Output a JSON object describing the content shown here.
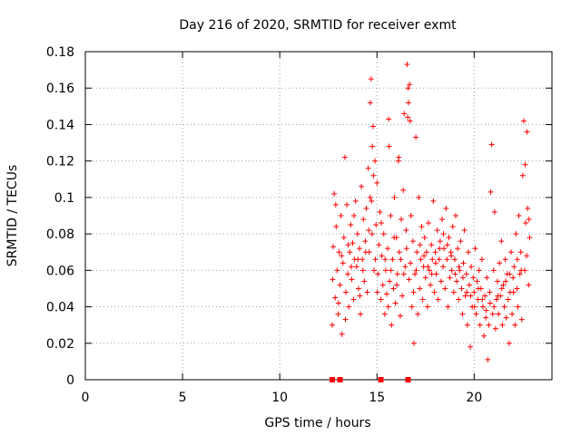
{
  "chart_data": {
    "type": "scatter",
    "title": "Day 216 of 2020, SRMTID for receiver exmt",
    "xlabel": "GPS time / hours",
    "ylabel": "SRMTID / TECUs",
    "xlim": [
      0,
      24
    ],
    "ylim": [
      0,
      0.18
    ],
    "x_ticks": [
      0,
      5,
      10,
      15,
      20
    ],
    "y_ticks": [
      0,
      0.02,
      0.04,
      0.06,
      0.08,
      0.1,
      0.12,
      0.14,
      0.16,
      0.18
    ],
    "x_tick_labels": [
      "0",
      "5",
      "10",
      "15",
      "20"
    ],
    "y_tick_labels": [
      "0",
      "0.02",
      "0.04",
      "0.06",
      "0.08",
      "0.1",
      "0.12",
      "0.14",
      "0.16",
      "0.18"
    ],
    "grid": true,
    "marker": "+",
    "color": "#ff0000",
    "zero_points_x": [
      12.7,
      13.1,
      15.2,
      16.6
    ],
    "series": [
      {
        "name": "SRMTID",
        "points": [
          [
            12.7,
            0.03
          ],
          [
            12.75,
            0.073
          ],
          [
            12.8,
            0.102
          ],
          [
            12.85,
            0.045
          ],
          [
            12.9,
            0.084
          ],
          [
            12.95,
            0.06
          ],
          [
            13.0,
            0.036
          ],
          [
            13.05,
            0.07
          ],
          [
            13.1,
            0.052
          ],
          [
            13.15,
            0.09
          ],
          [
            13.2,
            0.025
          ],
          [
            13.25,
            0.064
          ],
          [
            13.3,
            0.078
          ],
          [
            13.35,
            0.122
          ],
          [
            13.4,
            0.048
          ],
          [
            13.45,
            0.096
          ],
          [
            13.5,
            0.058
          ],
          [
            13.55,
            0.04
          ],
          [
            13.6,
            0.07
          ],
          [
            13.65,
            0.085
          ],
          [
            13.7,
            0.055
          ],
          [
            13.75,
            0.075
          ],
          [
            13.8,
            0.044
          ],
          [
            13.85,
            0.066
          ],
          [
            13.9,
            0.098
          ],
          [
            13.95,
            0.062
          ],
          [
            14.0,
            0.08
          ],
          [
            14.05,
            0.05
          ],
          [
            14.1,
            0.072
          ],
          [
            14.15,
            0.036
          ],
          [
            14.2,
            0.106
          ],
          [
            14.25,
            0.066
          ],
          [
            14.3,
            0.088
          ],
          [
            14.35,
            0.054
          ],
          [
            14.4,
            0.076
          ],
          [
            14.45,
            0.094
          ],
          [
            14.5,
            0.048
          ],
          [
            14.55,
            0.116
          ],
          [
            14.6,
            0.07
          ],
          [
            14.65,
            0.1
          ],
          [
            14.7,
            0.165
          ],
          [
            14.75,
            0.08
          ],
          [
            14.8,
            0.139
          ],
          [
            14.85,
            0.06
          ],
          [
            14.9,
            0.12
          ],
          [
            14.95,
            0.085
          ],
          [
            15.0,
            0.108
          ],
          [
            15.05,
            0.058
          ],
          [
            15.1,
            0.074
          ],
          [
            15.15,
            0.092
          ],
          [
            15.2,
            0.044
          ],
          [
            15.25,
            0.068
          ],
          [
            15.3,
            0.052
          ],
          [
            15.35,
            0.08
          ],
          [
            15.4,
            0.036
          ],
          [
            15.45,
            0.06
          ],
          [
            15.5,
            0.047
          ],
          [
            15.55,
            0.072
          ],
          [
            15.6,
            0.143
          ],
          [
            15.65,
            0.054
          ],
          [
            15.7,
            0.09
          ],
          [
            15.75,
            0.03
          ],
          [
            15.8,
            0.066
          ],
          [
            15.85,
            0.05
          ],
          [
            15.9,
            0.1
          ],
          [
            15.95,
            0.042
          ],
          [
            16.0,
            0.078
          ],
          [
            16.05,
            0.058
          ],
          [
            16.1,
            0.12
          ],
          [
            16.15,
            0.07
          ],
          [
            16.2,
            0.035
          ],
          [
            16.25,
            0.088
          ],
          [
            16.3,
            0.046
          ],
          [
            16.35,
            0.104
          ],
          [
            16.4,
            0.146
          ],
          [
            16.45,
            0.062
          ],
          [
            16.5,
            0.082
          ],
          [
            16.55,
            0.173
          ],
          [
            16.6,
            0.16
          ],
          [
            16.65,
            0.055
          ],
          [
            16.7,
            0.142
          ],
          [
            16.75,
            0.09
          ],
          [
            16.8,
            0.04
          ],
          [
            16.85,
            0.076
          ],
          [
            16.9,
            0.02
          ],
          [
            16.95,
            0.058
          ],
          [
            17.0,
            0.133
          ],
          [
            17.05,
            0.07
          ],
          [
            17.1,
            0.036
          ],
          [
            17.15,
            0.1
          ],
          [
            17.2,
            0.05
          ],
          [
            17.25,
            0.066
          ],
          [
            17.3,
            0.084
          ],
          [
            17.35,
            0.044
          ],
          [
            17.4,
            0.062
          ],
          [
            17.45,
            0.078
          ],
          [
            17.5,
            0.056
          ],
          [
            17.55,
            0.07
          ],
          [
            17.6,
            0.04
          ],
          [
            17.65,
            0.086
          ],
          [
            17.7,
            0.06
          ],
          [
            17.75,
            0.052
          ],
          [
            17.8,
            0.074
          ],
          [
            17.85,
            0.066
          ],
          [
            17.9,
            0.098
          ],
          [
            17.95,
            0.048
          ],
          [
            18.0,
            0.07
          ],
          [
            18.05,
            0.058
          ],
          [
            18.1,
            0.082
          ],
          [
            18.15,
            0.044
          ],
          [
            18.2,
            0.066
          ],
          [
            18.25,
            0.076
          ],
          [
            18.3,
            0.054
          ],
          [
            18.35,
            0.088
          ],
          [
            18.4,
            0.062
          ],
          [
            18.45,
            0.072
          ],
          [
            18.5,
            0.05
          ],
          [
            18.55,
            0.094
          ],
          [
            18.6,
            0.066
          ],
          [
            18.65,
            0.04
          ],
          [
            18.7,
            0.078
          ],
          [
            18.75,
            0.056
          ],
          [
            18.8,
            0.07
          ],
          [
            18.85,
            0.06
          ],
          [
            18.9,
            0.084
          ],
          [
            18.95,
            0.048
          ],
          [
            19.0,
            0.066
          ],
          [
            19.05,
            0.09
          ],
          [
            19.1,
            0.054
          ],
          [
            19.15,
            0.072
          ],
          [
            19.2,
            0.044
          ],
          [
            19.25,
            0.06
          ],
          [
            19.3,
            0.076
          ],
          [
            19.35,
            0.05
          ],
          [
            19.4,
            0.036
          ],
          [
            19.45,
            0.064
          ],
          [
            19.5,
            0.082
          ],
          [
            19.55,
            0.046
          ],
          [
            19.6,
            0.058
          ],
          [
            19.65,
            0.03
          ],
          [
            19.7,
            0.07
          ],
          [
            19.75,
            0.052
          ],
          [
            19.8,
            0.018
          ],
          [
            19.85,
            0.062
          ],
          [
            19.9,
            0.04
          ],
          [
            19.95,
            0.056
          ],
          [
            20.0,
            0.048
          ],
          [
            20.05,
            0.072
          ],
          [
            20.1,
            0.036
          ],
          [
            20.15,
            0.054
          ],
          [
            20.2,
            0.044
          ],
          [
            20.25,
            0.06
          ],
          [
            20.3,
            0.03
          ],
          [
            20.35,
            0.05
          ],
          [
            20.4,
            0.066
          ],
          [
            20.45,
            0.04
          ],
          [
            20.5,
            0.024
          ],
          [
            20.55,
            0.046
          ],
          [
            20.6,
            0.034
          ],
          [
            20.65,
            0.056
          ],
          [
            20.7,
            0.011
          ],
          [
            20.75,
            0.03
          ],
          [
            20.8,
            0.048
          ],
          [
            20.85,
            0.103
          ],
          [
            20.9,
            0.129
          ],
          [
            20.95,
            0.036
          ],
          [
            21.0,
            0.06
          ],
          [
            21.05,
            0.092
          ],
          [
            21.1,
            0.028
          ],
          [
            21.15,
            0.044
          ],
          [
            21.2,
            0.054
          ],
          [
            21.25,
            0.036
          ],
          [
            21.3,
            0.064
          ],
          [
            21.35,
            0.046
          ],
          [
            21.4,
            0.076
          ],
          [
            21.45,
            0.03
          ],
          [
            21.5,
            0.052
          ],
          [
            21.55,
            0.04
          ],
          [
            21.6,
            0.066
          ],
          [
            21.65,
            0.034
          ],
          [
            21.7,
            0.058
          ],
          [
            21.75,
            0.044
          ],
          [
            21.8,
            0.02
          ],
          [
            21.85,
            0.048
          ],
          [
            21.9,
            0.07
          ],
          [
            21.95,
            0.036
          ],
          [
            22.0,
            0.056
          ],
          [
            22.05,
            0.062
          ],
          [
            22.1,
            0.03
          ],
          [
            22.15,
            0.08
          ],
          [
            22.2,
            0.05
          ],
          [
            22.25,
            0.04
          ],
          [
            22.3,
            0.09
          ],
          [
            22.35,
            0.058
          ],
          [
            22.4,
            0.07
          ],
          [
            22.45,
            0.033
          ],
          [
            22.5,
            0.112
          ],
          [
            22.55,
            0.142
          ],
          [
            22.6,
            0.06
          ],
          [
            22.65,
            0.086
          ],
          [
            22.7,
            0.068
          ],
          [
            22.75,
            0.094
          ],
          [
            22.8,
            0.052
          ],
          [
            22.85,
            0.078
          ],
          [
            12.72,
            0.055
          ],
          [
            12.88,
            0.096
          ],
          [
            13.02,
            0.042
          ],
          [
            13.18,
            0.068
          ],
          [
            13.38,
            0.033
          ],
          [
            13.52,
            0.074
          ],
          [
            13.68,
            0.062
          ],
          [
            13.82,
            0.09
          ],
          [
            14.02,
            0.066
          ],
          [
            14.12,
            0.046
          ],
          [
            14.28,
            0.06
          ],
          [
            14.42,
            0.07
          ],
          [
            14.58,
            0.082
          ],
          [
            14.72,
            0.098
          ],
          [
            14.82,
            0.112
          ],
          [
            14.92,
            0.066
          ],
          [
            15.02,
            0.048
          ],
          [
            15.22,
            0.086
          ],
          [
            15.42,
            0.066
          ],
          [
            15.58,
            0.04
          ],
          [
            15.72,
            0.06
          ],
          [
            15.88,
            0.078
          ],
          [
            16.02,
            0.052
          ],
          [
            16.22,
            0.066
          ],
          [
            16.38,
            0.058
          ],
          [
            16.52,
            0.072
          ],
          [
            16.72,
            0.064
          ],
          [
            16.88,
            0.048
          ],
          [
            17.02,
            0.06
          ],
          [
            17.22,
            0.074
          ],
          [
            17.42,
            0.068
          ],
          [
            17.62,
            0.062
          ],
          [
            17.82,
            0.058
          ],
          [
            18.02,
            0.064
          ],
          [
            18.22,
            0.072
          ],
          [
            18.42,
            0.08
          ],
          [
            18.62,
            0.074
          ],
          [
            18.82,
            0.068
          ],
          [
            19.02,
            0.058
          ],
          [
            19.22,
            0.062
          ],
          [
            19.42,
            0.056
          ],
          [
            19.62,
            0.048
          ],
          [
            19.82,
            0.046
          ],
          [
            20.02,
            0.04
          ],
          [
            20.22,
            0.05
          ],
          [
            20.42,
            0.044
          ],
          [
            20.62,
            0.038
          ],
          [
            20.82,
            0.042
          ],
          [
            21.02,
            0.04
          ],
          [
            21.22,
            0.046
          ],
          [
            21.42,
            0.05
          ],
          [
            21.62,
            0.054
          ],
          [
            21.82,
            0.058
          ],
          [
            22.02,
            0.048
          ],
          [
            22.22,
            0.066
          ],
          [
            22.42,
            0.06
          ],
          [
            22.62,
            0.118
          ],
          [
            22.72,
            0.136
          ],
          [
            22.82,
            0.088
          ],
          [
            15.62,
            0.128
          ],
          [
            16.12,
            0.122
          ],
          [
            16.62,
            0.152
          ],
          [
            14.66,
            0.152
          ],
          [
            14.76,
            0.128
          ],
          [
            16.68,
            0.162
          ],
          [
            16.58,
            0.144
          ]
        ]
      }
    ]
  }
}
